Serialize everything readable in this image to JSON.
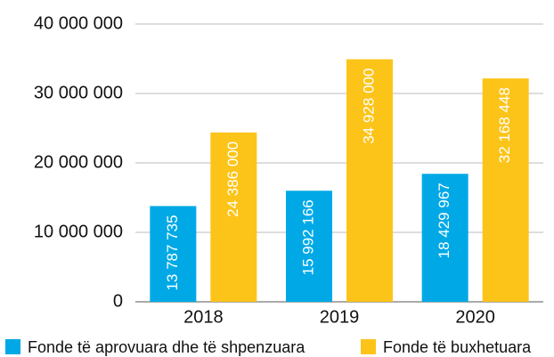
{
  "chart_data": {
    "type": "bar",
    "categories": [
      "2018",
      "2019",
      "2020"
    ],
    "series": [
      {
        "name": "Fonde të aprovuara dhe të shpenzuara",
        "color": "#00a9e6",
        "values": [
          13787735,
          15992166,
          18429967
        ],
        "value_labels": [
          "13 787 735",
          "15 992 166",
          "18 429 967"
        ]
      },
      {
        "name": "Fonde të buxhetuara",
        "color": "#fcc419",
        "values": [
          24386000,
          34928000,
          32168448
        ],
        "value_labels": [
          "24 386 000",
          "34 928 000",
          "32 168 448"
        ]
      }
    ],
    "ylim": [
      0,
      40000000
    ],
    "yticks": [
      0,
      {
        "value": 10000000,
        "label": "10 000 000"
      },
      {
        "value": 20000000,
        "label": "20 000 000"
      },
      {
        "value": 30000000,
        "label": "30 000 000"
      },
      {
        "value": 40000000,
        "label": "40 000 000"
      }
    ],
    "grid": true,
    "legend": "bottom"
  }
}
